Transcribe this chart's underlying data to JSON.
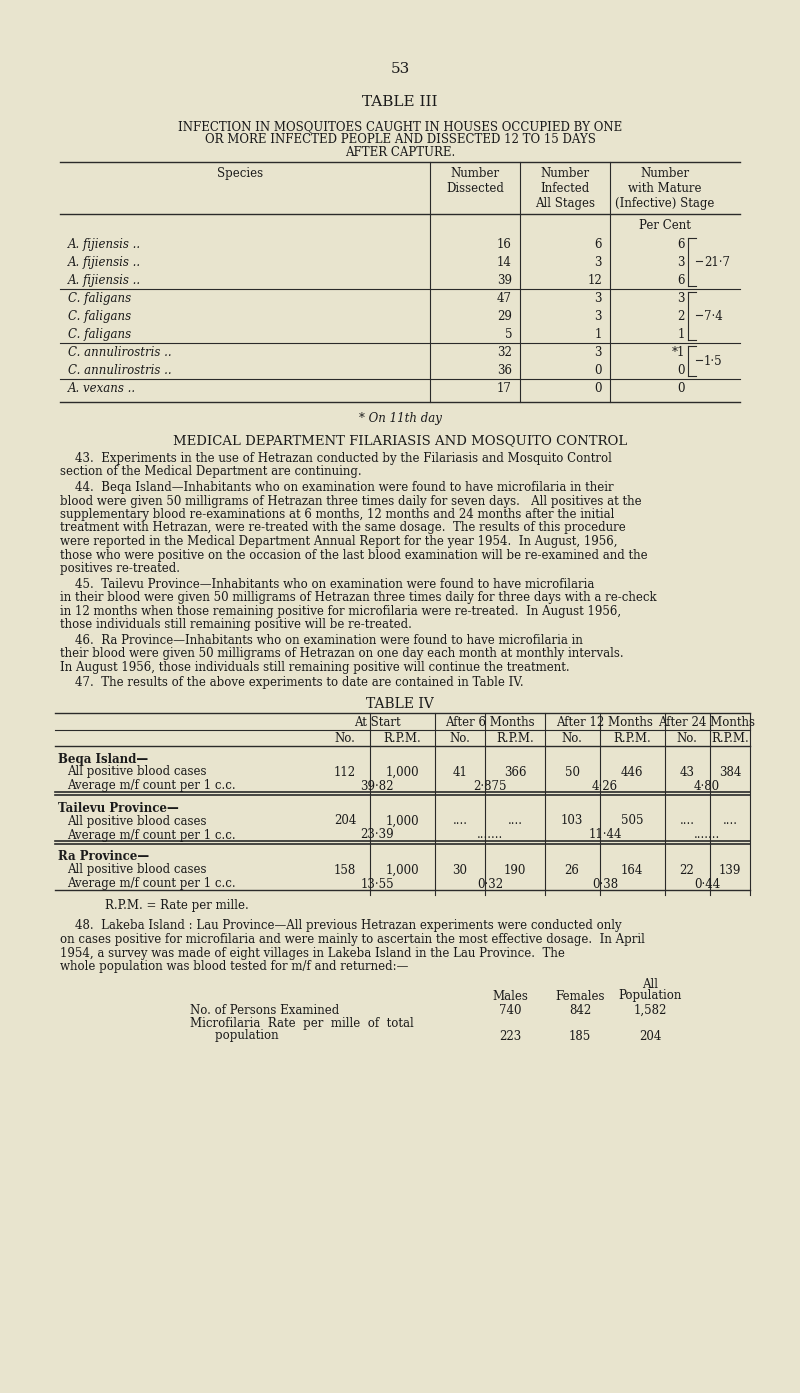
{
  "page_number": "53",
  "bg_color": "#e8e4ce",
  "text_color": "#1a1a1a",
  "table3_title": "TABLE III",
  "table3_subtitle_lines": [
    "INFECTION IN MOSQUITOES CAUGHT IN HOUSES OCCUPIED BY ONE",
    "OR MORE INFECTED PEOPLE AND DISSECTED 12 TO 15 DAYS",
    "AFTER CAPTURE."
  ],
  "table3_rows": [
    [
      "A. fijiensis ..",
      "16",
      "6",
      "6"
    ],
    [
      "A. fijiensis ..",
      "14",
      "3",
      "3"
    ],
    [
      "A. fijiensis ..",
      "39",
      "12",
      "6"
    ],
    [
      "C. faligans",
      "47",
      "3",
      "3"
    ],
    [
      "C. faligans",
      "29",
      "3",
      "2"
    ],
    [
      "C. faligans",
      "5",
      "1",
      "1"
    ],
    [
      "C. annulirostris ..",
      "32",
      "3",
      "*1"
    ],
    [
      "C. annulirostris ..",
      "36",
      "0",
      "0"
    ],
    [
      "A. vexans ..",
      "17",
      "0",
      "0"
    ]
  ],
  "table3_braces": [
    {
      "rows": [
        0,
        1,
        2
      ],
      "value": "21·7"
    },
    {
      "rows": [
        3,
        4,
        5
      ],
      "value": "7·4"
    },
    {
      "rows": [
        6,
        7
      ],
      "value": "1·5"
    }
  ],
  "footnote3": "* On 11th day",
  "section_heading": "MEDICAL DEPARTMENT FILARIASIS AND MOSQUITO CONTROL",
  "paragraphs": [
    "    43.  Experiments in the use of Hetrazan conducted by the Filariasis and Mosquito Control\nsection of the Medical Department are continuing.",
    "    44.  Beqa Island—Inhabitants who on examination were found to have microfilaria in their\nblood were given 50 milligrams of Hetrazan three times daily for seven days.   All positives at the\nsupplementary blood re-examinations at 6 months, 12 months and 24 months after the initial\ntreatment with Hetrazan, were re-treated with the same dosage.  The results of this procedure\nwere reported in the Medical Department Annual Report for the year 1954.  In August, 1956,\nthose who were positive on the occasion of the last blood examination will be re-examined and the\npositives re-treated.",
    "    45.  Tailevu Province—Inhabitants who on examination were found to have microfilaria\nin their blood were given 50 milligrams of Hetrazan three times daily for three days with a re-check\nin 12 months when those remaining positive for microfilaria were re-treated.  In August 1956,\nthose individuals still remaining positive will be re-treated.",
    "    46.  Ra Province—Inhabitants who on examination were found to have microfilaria in\ntheir blood were given 50 milligrams of Hetrazan on one day each month at monthly intervals.\nIn August 1956, those individuals still remaining positive will continue the treatment.",
    "    47.  The results of the above experiments to date are contained in Table IV."
  ],
  "table4_title": "TABLE IV",
  "table4_sections": [
    {
      "section": "Beqa Island—",
      "row1_label": "All positive blood cases",
      "row1_data": [
        "112",
        "1,000",
        "41",
        "366",
        "50",
        "446",
        "43",
        "384"
      ],
      "row2_label": "Average m/f count per 1 c.c.",
      "row2_data": [
        "39·82",
        "2·875",
        "4·26",
        "4·80"
      ]
    },
    {
      "section": "Tailevu Province—",
      "row1_label": "All positive blood cases",
      "row1_data": [
        "204",
        "1,000",
        "....",
        "....",
        "103",
        "505",
        "....",
        "...."
      ],
      "row2_label": "Average m/f count per 1 c.c.",
      "row2_data": [
        "23·39",
        ".......",
        "11·44",
        "......."
      ]
    },
    {
      "section": "Ra Province—",
      "row1_label": "All positive blood cases",
      "row1_data": [
        "158",
        "1,000",
        "30",
        "190",
        "26",
        "164",
        "22",
        "139"
      ],
      "row2_label": "Average m/f count per 1 c.c.",
      "row2_data": [
        "13·55",
        "0·32",
        "0·38",
        "0·44"
      ]
    }
  ],
  "footnote4": "R.P.M. = Rate per mille.",
  "para48": "    48.  Lakeba Island : Lau Province—All previous Hetrazan experiments were conducted only\non cases positive for microfilaria and were mainly to ascertain the most effective dosage.  In April\n1954, a survey was made of eight villages in Lakeba Island in the Lau Province.  The\nwhole population was blood tested for m/f and returned:—",
  "lakeba_row1_label": "No. of Persons Examined",
  "lakeba_row1_data": [
    "740",
    "842",
    "1,582"
  ],
  "lakeba_row2_label_line1": "Microfilaria  Rate  per  mille  of  total",
  "lakeba_row2_label_line2": "    population",
  "lakeba_row2_data": [
    "223",
    "185",
    "204"
  ]
}
